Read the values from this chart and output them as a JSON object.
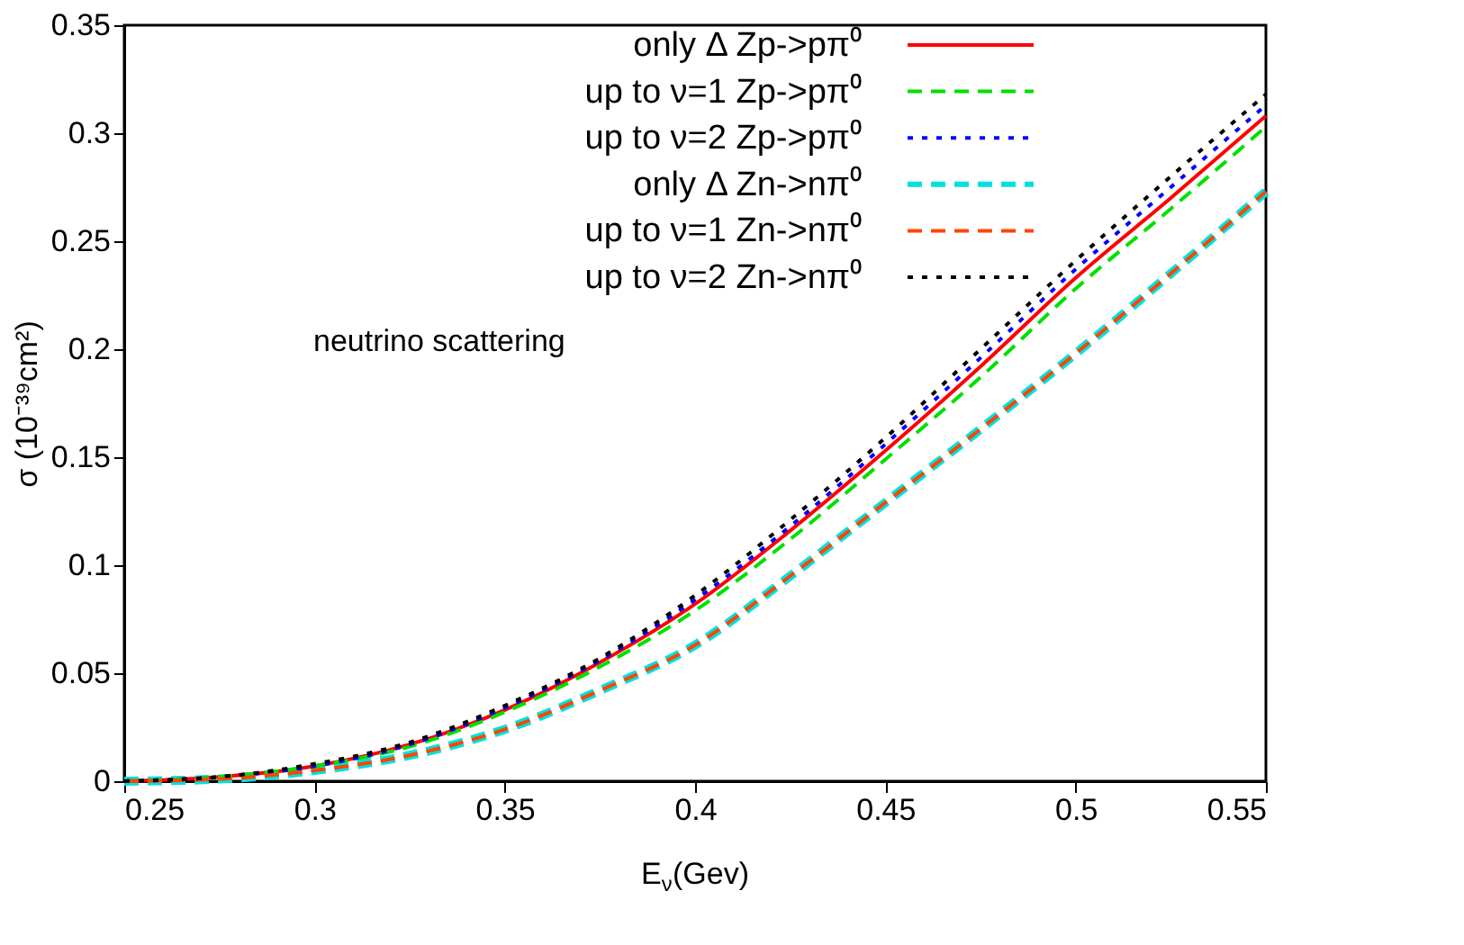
{
  "chart_data": {
    "type": "line",
    "xlabel": "E$_{ν}$(Gev)",
    "ylabel": "σ (10⁻³⁹cm²)",
    "x": [
      0.25,
      0.275,
      0.3,
      0.325,
      0.35,
      0.375,
      0.4,
      0.425,
      0.45,
      0.475,
      0.5,
      0.525,
      0.55
    ],
    "series": [
      {
        "name": "only Δ Zp->pπ⁰",
        "color": "#ff0000",
        "line_style": "solid",
        "values": [
          0,
          0.002,
          0.007,
          0.017,
          0.033,
          0.055,
          0.082,
          0.116,
          0.153,
          0.192,
          0.233,
          0.27,
          0.308
        ]
      },
      {
        "name": "up to ν=1 Zp->pπ⁰",
        "color": "#00e000",
        "line_style": "dashed",
        "values": [
          0,
          0.002,
          0.007,
          0.016,
          0.032,
          0.053,
          0.079,
          0.112,
          0.149,
          0.187,
          0.228,
          0.265,
          0.303
        ]
      },
      {
        "name": "up to ν=2 Zp->pπ⁰",
        "color": "#0000ff",
        "line_style": "dotted",
        "values": [
          0,
          0.002,
          0.007,
          0.017,
          0.034,
          0.056,
          0.084,
          0.118,
          0.156,
          0.196,
          0.237,
          0.275,
          0.313
        ]
      },
      {
        "name": "only Δ Zn->nπ⁰",
        "color": "#00e0e0",
        "line_style": "dashed",
        "values": [
          0,
          0.001,
          0.005,
          0.012,
          0.024,
          0.042,
          0.063,
          0.095,
          0.129,
          0.163,
          0.198,
          0.235,
          0.273
        ]
      },
      {
        "name": "up to ν=1 Zn->nπ⁰",
        "color": "#ff4500",
        "line_style": "dashed",
        "values": [
          0,
          0.001,
          0.005,
          0.012,
          0.024,
          0.042,
          0.063,
          0.095,
          0.129,
          0.163,
          0.198,
          0.235,
          0.273
        ]
      },
      {
        "name": "up to ν=2 Zn->nπ⁰",
        "color": "#000000",
        "line_style": "dotted",
        "values": [
          0,
          0.002,
          0.008,
          0.018,
          0.035,
          0.057,
          0.086,
          0.121,
          0.159,
          0.2,
          0.241,
          0.28,
          0.318
        ]
      }
    ],
    "annotations": [
      "neutrino scattering"
    ],
    "xlim": [
      0.25,
      0.55
    ],
    "xticks": [
      0.25,
      0.3,
      0.35,
      0.4,
      0.45,
      0.5,
      0.55
    ],
    "ylim": [
      0,
      0.35
    ],
    "yticks": [
      0,
      0.05,
      0.1,
      0.15,
      0.2,
      0.25,
      0.3,
      0.35
    ],
    "grid": false,
    "legend": "top right",
    "marker": "none"
  }
}
